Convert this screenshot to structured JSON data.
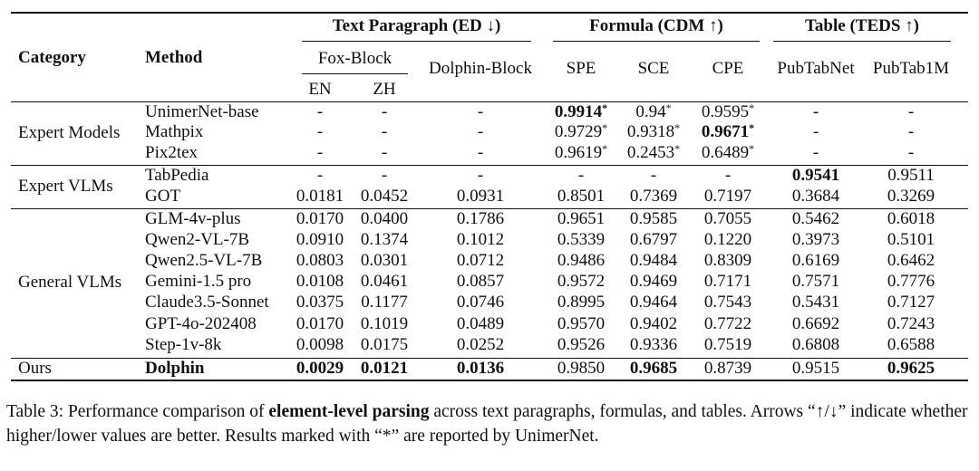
{
  "header": {
    "category": "Category",
    "method": "Method",
    "group_text": "Text Paragraph (ED ↓)",
    "group_formula": "Formula (CDM ↑)",
    "group_table": "Table (TEDS ↑)",
    "fox_block": "Fox-Block",
    "dolphin_block": "Dolphin-Block",
    "en": "EN",
    "zh": "ZH",
    "spe": "SPE",
    "sce": "SCE",
    "cpe": "CPE",
    "pubtabnet": "PubTabNet",
    "pubtab1m": "PubTab1M"
  },
  "categories": [
    {
      "label": "Expert Models",
      "rows": [
        0,
        1,
        2
      ]
    },
    {
      "label": "Expert VLMs",
      "rows": [
        3,
        4
      ]
    },
    {
      "label": "General VLMs",
      "rows": [
        5,
        6,
        7,
        8,
        9,
        10,
        11
      ]
    },
    {
      "label": "Ours",
      "rows": [
        12
      ]
    }
  ],
  "rows": [
    {
      "method": "UnimerNet-base",
      "cells": [
        "-",
        "-",
        "-",
        "0.9914*",
        "0.94*",
        "0.9595*",
        "-",
        "-"
      ],
      "bold": [
        3
      ]
    },
    {
      "method": "Mathpix",
      "cells": [
        "-",
        "-",
        "-",
        "0.9729*",
        "0.9318*",
        "0.9671*",
        "-",
        "-"
      ],
      "bold": [
        5
      ]
    },
    {
      "method": "Pix2tex",
      "cells": [
        "-",
        "-",
        "-",
        "0.9619*",
        "0.2453*",
        "0.6489*",
        "-",
        "-"
      ],
      "bold": []
    },
    {
      "method": "TabPedia",
      "cells": [
        "-",
        "-",
        "-",
        "-",
        "-",
        "-",
        "0.9541",
        "0.9511"
      ],
      "bold": [
        6
      ]
    },
    {
      "method": "GOT",
      "cells": [
        "0.0181",
        "0.0452",
        "0.0931",
        "0.8501",
        "0.7369",
        "0.7197",
        "0.3684",
        "0.3269"
      ],
      "bold": []
    },
    {
      "method": "GLM-4v-plus",
      "cells": [
        "0.0170",
        "0.0400",
        "0.1786",
        "0.9651",
        "0.9585",
        "0.7055",
        "0.5462",
        "0.6018"
      ],
      "bold": []
    },
    {
      "method": "Qwen2-VL-7B",
      "cells": [
        "0.0910",
        "0.1374",
        "0.1012",
        "0.5339",
        "0.6797",
        "0.1220",
        "0.3973",
        "0.5101"
      ],
      "bold": []
    },
    {
      "method": "Qwen2.5-VL-7B",
      "cells": [
        "0.0803",
        "0.0301",
        "0.0712",
        "0.9486",
        "0.9484",
        "0.8309",
        "0.6169",
        "0.6462"
      ],
      "bold": []
    },
    {
      "method": "Gemini-1.5 pro",
      "cells": [
        "0.0108",
        "0.0461",
        "0.0857",
        "0.9572",
        "0.9469",
        "0.7171",
        "0.7571",
        "0.7776"
      ],
      "bold": []
    },
    {
      "method": "Claude3.5-Sonnet",
      "cells": [
        "0.0375",
        "0.1177",
        "0.0746",
        "0.8995",
        "0.9464",
        "0.7543",
        "0.5431",
        "0.7127"
      ],
      "bold": []
    },
    {
      "method": "GPT-4o-202408",
      "cells": [
        "0.0170",
        "0.1019",
        "0.0489",
        "0.9570",
        "0.9402",
        "0.7722",
        "0.6692",
        "0.7243"
      ],
      "bold": []
    },
    {
      "method": "Step-1v-8k",
      "cells": [
        "0.0098",
        "0.0175",
        "0.0252",
        "0.9526",
        "0.9336",
        "0.7519",
        "0.6808",
        "0.6588"
      ],
      "bold": []
    },
    {
      "method": "Dolphin",
      "method_bold": true,
      "cells": [
        "0.0029",
        "0.0121",
        "0.0136",
        "0.9850",
        "0.9685",
        "0.8739",
        "0.9515",
        "0.9625"
      ],
      "bold": [
        0,
        1,
        2,
        4,
        7
      ]
    }
  ],
  "caption": {
    "prefix": "Table 3:  Performance comparison of ",
    "bold": "element-level parsing",
    "suffix": " across text paragraphs, formulas, and tables. Arrows “↑/↓” indicate whether higher/lower values are better. Results marked with “*” are reported by UnimerNet."
  }
}
